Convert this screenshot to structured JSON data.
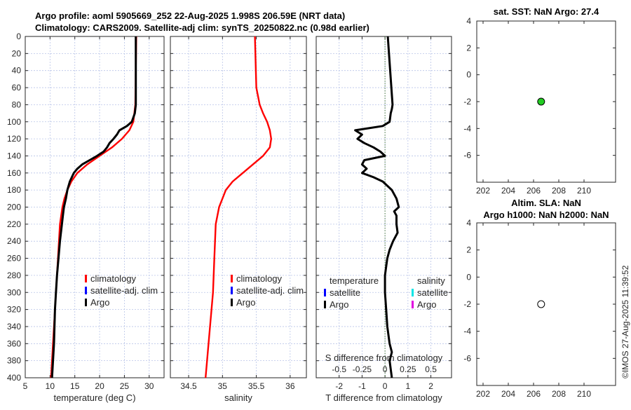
{
  "chart_data": [
    {
      "type": "line",
      "id": "temperature",
      "title_lines": [
        "Argo profile: aoml 5905669_252 22-Aug-2025 1.998S 206.59E (NRT data)",
        "Climatology: CARS2009. Satellite-adj clim: synTS_20250822.nc (0.98d earlier)"
      ],
      "xlabel": "temperature (deg C)",
      "xlim": [
        5,
        33
      ],
      "ylim": [
        0,
        400
      ],
      "xticks": [
        5,
        10,
        15,
        20,
        25,
        30
      ],
      "yticks": [
        0,
        20,
        40,
        60,
        80,
        100,
        120,
        140,
        160,
        180,
        200,
        220,
        240,
        260,
        280,
        300,
        320,
        340,
        360,
        380,
        400
      ],
      "grid": true,
      "legend": [
        "climatology",
        "satellite-adj. clim",
        "Argo"
      ],
      "series": [
        {
          "name": "climatology",
          "color": "#ff0000",
          "depth": [
            0,
            80,
            100,
            110,
            120,
            130,
            140,
            150,
            160,
            170,
            180,
            190,
            200,
            220,
            260,
            300,
            340,
            400
          ],
          "values": [
            27.4,
            27.2,
            26.8,
            26.0,
            24.5,
            22.5,
            20.0,
            17.5,
            15.5,
            14.3,
            13.5,
            12.9,
            12.5,
            12.0,
            11.6,
            11.2,
            10.8,
            10.2
          ]
        },
        {
          "name": "Argo",
          "color": "#000000",
          "depth": [
            0,
            80,
            90,
            100,
            105,
            110,
            115,
            120,
            125,
            130,
            135,
            140,
            145,
            150,
            155,
            160,
            170,
            180,
            190,
            200,
            210,
            220,
            240,
            260,
            280,
            300,
            320,
            340,
            360,
            380,
            400
          ],
          "values": [
            27.3,
            27.3,
            27.1,
            26.5,
            25.5,
            24.0,
            23.5,
            22.8,
            22.0,
            21.5,
            20.8,
            19.5,
            18.0,
            16.5,
            15.5,
            14.8,
            14.0,
            13.5,
            13.2,
            12.8,
            12.6,
            12.4,
            12.0,
            11.7,
            11.4,
            11.2,
            11.0,
            10.9,
            10.8,
            10.6,
            10.4
          ]
        }
      ]
    },
    {
      "type": "line",
      "id": "salinity",
      "xlabel": "salinity",
      "xlim": [
        34.23,
        36.24
      ],
      "ylim": [
        0,
        400
      ],
      "xticks": [
        34.5,
        35,
        35.5,
        36
      ],
      "grid": true,
      "legend": [
        "climatology",
        "satellite-adj. clim",
        "Argo"
      ],
      "series": [
        {
          "name": "climatology",
          "color": "#ff0000",
          "depth": [
            0,
            60,
            80,
            90,
            100,
            110,
            120,
            130,
            140,
            150,
            160,
            170,
            180,
            190,
            200,
            220,
            260,
            300,
            400
          ],
          "values": [
            35.48,
            35.5,
            35.55,
            35.6,
            35.66,
            35.7,
            35.72,
            35.7,
            35.6,
            35.45,
            35.3,
            35.15,
            35.05,
            35.0,
            34.95,
            34.9,
            34.88,
            34.86,
            34.75
          ]
        }
      ]
    },
    {
      "type": "line",
      "id": "difference",
      "xlabel": "T difference from climatology",
      "top_xlabel": "S difference from climatology",
      "xlim": [
        -3,
        2.9
      ],
      "ylim": [
        0,
        400
      ],
      "xticks": [
        -2,
        -1,
        0,
        1,
        2
      ],
      "top_xticks": [
        "-0.5",
        "-0.25",
        "0",
        "0.25",
        "0.5"
      ],
      "top_xtick_positions": [
        -2,
        -1,
        0,
        1,
        2
      ],
      "grid": true,
      "legend_temperature": {
        "title": "temperature",
        "items": [
          "satellite",
          "Argo"
        ]
      },
      "legend_salinity": {
        "title": "salinity",
        "items": [
          "satellite",
          "Argo"
        ]
      },
      "series": [
        {
          "name": "Argo T diff",
          "color": "#000000",
          "depth": [
            0,
            80,
            85,
            90,
            100,
            105,
            110,
            115,
            120,
            125,
            130,
            135,
            140,
            145,
            150,
            155,
            160,
            165,
            170,
            180,
            190,
            200,
            205,
            210,
            220,
            230,
            240,
            250,
            260,
            280,
            300,
            320,
            340,
            360,
            370,
            380,
            390,
            400
          ],
          "values": [
            0.12,
            0.33,
            0.3,
            0.25,
            0.2,
            -0.1,
            -1.3,
            -1.0,
            -1.2,
            -0.9,
            -0.5,
            -0.2,
            0.0,
            -0.9,
            -1.0,
            -0.8,
            -1.0,
            -0.5,
            -0.1,
            0.3,
            0.5,
            0.6,
            0.4,
            0.5,
            0.5,
            0.55,
            0.35,
            0.2,
            0.1,
            0.0,
            0.0,
            0.05,
            0.1,
            0.2,
            0.3,
            0.2,
            0.25,
            0.3
          ]
        }
      ]
    },
    {
      "type": "scatter",
      "id": "sst",
      "title": "sat. SST: NaN Argo: 27.4",
      "xlim": [
        201.5,
        212.5
      ],
      "ylim": [
        -8,
        4
      ],
      "xticks": [
        202,
        204,
        206,
        208,
        210
      ],
      "yticks": [
        4,
        2,
        0,
        -2,
        -4,
        -6
      ],
      "points": [
        {
          "x": 206.6,
          "y": -2,
          "color": "#22cc22"
        }
      ]
    },
    {
      "type": "scatter",
      "id": "sla",
      "title_lines": [
        "Altim. SLA: NaN",
        "Argo h1000: NaN h2000: NaN"
      ],
      "xlim": [
        201.5,
        212.5
      ],
      "ylim": [
        -8,
        4
      ],
      "xticks": [
        202,
        204,
        206,
        208,
        210
      ],
      "yticks": [
        4,
        2,
        0,
        -2,
        -4,
        -6
      ],
      "points": [
        {
          "x": 206.6,
          "y": -2,
          "color": "#ffffff"
        }
      ]
    }
  ],
  "legend_colors": {
    "climatology": "#ff0000",
    "satellite": "#0000ff",
    "argo": "#000000",
    "sal_satellite": "#00e5e5",
    "sal_argo": "#e000e0"
  },
  "footer": "©IMOS 27-Aug-2025 11:39:52"
}
